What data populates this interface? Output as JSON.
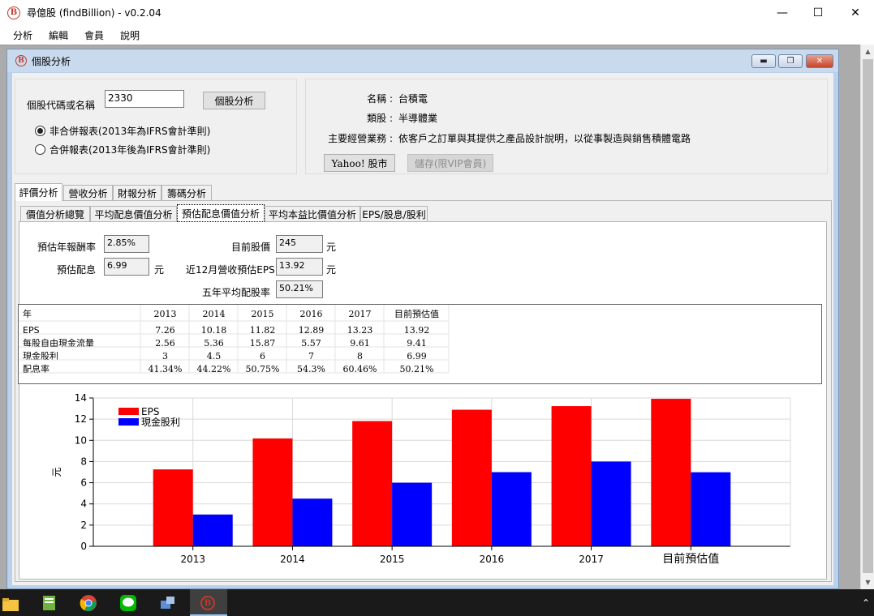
{
  "window": {
    "title": "尋億股 (findBillion) - v0.2.04",
    "logo_letter": "B"
  },
  "menu": [
    "分析",
    "編輯",
    "會員",
    "說明"
  ],
  "child": {
    "title": "個股分析"
  },
  "search": {
    "label": "個股代碼或名稱",
    "value": "2330",
    "button": "個股分析",
    "radio_1": "非合併報表(2013年為IFRS會計準則)",
    "radio_2": "合併報表(2013年後為IFRS會計準則)",
    "selected": 1
  },
  "info": {
    "name_label": "名稱 :",
    "name_value": "台積電",
    "category_label": "類股 :",
    "category_value": "半導體業",
    "business_label": "主要經營業務 :",
    "business_value": "依客戶之訂單與其提供之產品設計說明，以從事製造與銷售積體電路",
    "yahoo_button": "Yahoo! 股市",
    "save_button": "儲存(限VIP會員)"
  },
  "main_tabs": [
    "評價分析",
    "營收分析",
    "財報分析",
    "籌碼分析"
  ],
  "sub_tabs": [
    "價值分析總覽",
    "平均配息價值分析",
    "預估配息價值分析",
    "平均本益比價值分析",
    "EPS/股息/股利"
  ],
  "form": {
    "annual_return_label": "預估年報酬率",
    "annual_return_value": "2.85%",
    "dividend_label": "預估配息",
    "dividend_value": "6.99",
    "dividend_unit": "元",
    "price_label": "目前股價",
    "price_value": "245",
    "price_unit": "元",
    "eps_label": "近12月營收預估EPS",
    "eps_value": "13.92",
    "eps_unit": "元",
    "payout_label": "五年平均配股率",
    "payout_value": "50.21%"
  },
  "table": {
    "header": [
      "年",
      "2013",
      "2014",
      "2015",
      "2016",
      "2017",
      "目前預估值"
    ],
    "rows": [
      [
        "EPS",
        "7.26",
        "10.18",
        "11.82",
        "12.89",
        "13.23",
        "13.92"
      ],
      [
        "每股自由現金流量",
        "2.56",
        "5.36",
        "15.87",
        "5.57",
        "9.61",
        "9.41"
      ],
      [
        "現金股利",
        "3",
        "4.5",
        "6",
        "7",
        "8",
        "6.99"
      ],
      [
        "配息率",
        "41.34%",
        "44.22%",
        "50.75%",
        "54.3%",
        "60.46%",
        "50.21%"
      ]
    ]
  },
  "chart_data": {
    "type": "bar",
    "categories": [
      "2013",
      "2014",
      "2015",
      "2016",
      "2017",
      "目前預估值"
    ],
    "series": [
      {
        "name": "EPS",
        "color": "#ff0000",
        "values": [
          7.26,
          10.18,
          11.82,
          12.89,
          13.23,
          13.92
        ]
      },
      {
        "name": "現金股利",
        "color": "#0000ff",
        "values": [
          3,
          4.5,
          6,
          7,
          8,
          6.99
        ]
      }
    ],
    "ylabel": "元",
    "ylim": [
      0,
      14
    ],
    "yticks": [
      0,
      2,
      4,
      6,
      8,
      10,
      12,
      14
    ],
    "grid": true,
    "legend": "top-left"
  }
}
